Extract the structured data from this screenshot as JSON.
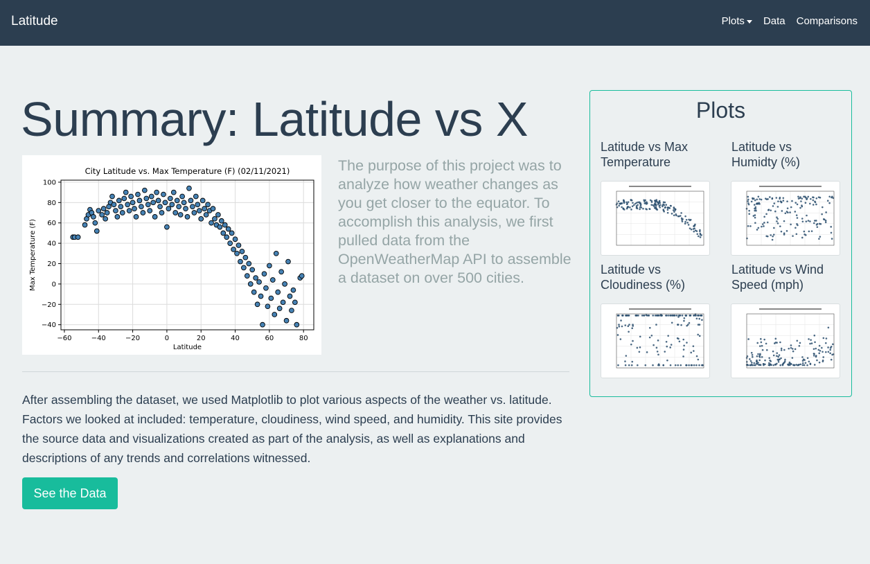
{
  "navbar": {
    "brand": "Latitude",
    "links": {
      "plots": "Plots",
      "data": "Data",
      "comparisons": "Comparisons"
    }
  },
  "page": {
    "title": "Summary: Latitude vs X",
    "lead": "The purpose of this project was to analyze how weather changes as you get closer to the equator. To accomplish this analysis, we first pulled data from the OpenWeatherMap API to assemble a dataset on over 500 cities.",
    "body": "After assembling the dataset, we used Matplotlib to plot various aspects of the weather vs. latitude. Factors we looked at included: temperature, cloudiness, wind speed, and humidity. This site provides the source data and visualizations created as part of the analysis, as well as explanations and descriptions of any trends and correlations witnessed.",
    "button": "See the Data"
  },
  "panel": {
    "title": "Plots",
    "thumbs": [
      {
        "label": "Latitude vs Max Temperature"
      },
      {
        "label": "Latitude vs Humidty (%)"
      },
      {
        "label": "Latitude vs Cloudiness (%)"
      },
      {
        "label": "Latitude vs Wind Speed (mph)"
      }
    ]
  },
  "colors": {
    "navbar": "#2c3e50",
    "accent": "#18bc9c",
    "background": "#ecf0f1",
    "muted": "#95a5a6",
    "marker": "#4682b4"
  },
  "chart_data": {
    "type": "scatter",
    "title": "City Latitude vs. Max Temperature (F) (02/11/2021)",
    "xlabel": "Latitude",
    "ylabel": "Max Temperature (F)",
    "xlim": [
      -62,
      86
    ],
    "ylim": [
      -45,
      102
    ],
    "xticks": [
      -60,
      -40,
      -20,
      0,
      20,
      40,
      60,
      80
    ],
    "yticks": [
      100,
      80,
      60,
      40,
      20,
      0,
      -20,
      -40
    ],
    "grid": true,
    "points": [
      [
        -55,
        46
      ],
      [
        -54,
        46
      ],
      [
        -52,
        46
      ],
      [
        -48,
        58
      ],
      [
        -47,
        64
      ],
      [
        -46,
        68
      ],
      [
        -45,
        73
      ],
      [
        -44,
        70
      ],
      [
        -43,
        66
      ],
      [
        -42,
        60
      ],
      [
        -41,
        52
      ],
      [
        -40,
        72
      ],
      [
        -38,
        68
      ],
      [
        -37,
        74
      ],
      [
        -36,
        64
      ],
      [
        -35,
        70
      ],
      [
        -34,
        76
      ],
      [
        -33,
        80
      ],
      [
        -32,
        86
      ],
      [
        -31,
        78
      ],
      [
        -30,
        72
      ],
      [
        -29,
        66
      ],
      [
        -28,
        82
      ],
      [
        -27,
        76
      ],
      [
        -26,
        70
      ],
      [
        -25,
        84
      ],
      [
        -24,
        90
      ],
      [
        -23,
        78
      ],
      [
        -22,
        72
      ],
      [
        -21,
        86
      ],
      [
        -20,
        80
      ],
      [
        -19,
        74
      ],
      [
        -18,
        66
      ],
      [
        -17,
        88
      ],
      [
        -16,
        82
      ],
      [
        -15,
        76
      ],
      [
        -14,
        70
      ],
      [
        -13,
        92
      ],
      [
        -12,
        84
      ],
      [
        -11,
        78
      ],
      [
        -10,
        72
      ],
      [
        -9,
        86
      ],
      [
        -8,
        80
      ],
      [
        -7,
        66
      ],
      [
        -6,
        90
      ],
      [
        -5,
        82
      ],
      [
        -4,
        76
      ],
      [
        -3,
        70
      ],
      [
        -2,
        88
      ],
      [
        -1,
        80
      ],
      [
        0,
        56
      ],
      [
        1,
        74
      ],
      [
        2,
        84
      ],
      [
        3,
        78
      ],
      [
        4,
        90
      ],
      [
        5,
        70
      ],
      [
        6,
        82
      ],
      [
        7,
        76
      ],
      [
        8,
        68
      ],
      [
        9,
        86
      ],
      [
        10,
        80
      ],
      [
        11,
        74
      ],
      [
        12,
        66
      ],
      [
        13,
        94
      ],
      [
        14,
        82
      ],
      [
        15,
        76
      ],
      [
        16,
        70
      ],
      [
        17,
        86
      ],
      [
        18,
        78
      ],
      [
        19,
        72
      ],
      [
        20,
        64
      ],
      [
        21,
        82
      ],
      [
        22,
        74
      ],
      [
        23,
        68
      ],
      [
        24,
        78
      ],
      [
        25,
        72
      ],
      [
        26,
        60
      ],
      [
        27,
        74
      ],
      [
        28,
        64
      ],
      [
        29,
        58
      ],
      [
        30,
        68
      ],
      [
        31,
        56
      ],
      [
        32,
        62
      ],
      [
        33,
        50
      ],
      [
        34,
        58
      ],
      [
        35,
        46
      ],
      [
        36,
        54
      ],
      [
        37,
        40
      ],
      [
        38,
        50
      ],
      [
        39,
        34
      ],
      [
        40,
        44
      ],
      [
        41,
        30
      ],
      [
        42,
        38
      ],
      [
        43,
        22
      ],
      [
        44,
        32
      ],
      [
        45,
        16
      ],
      [
        46,
        26
      ],
      [
        47,
        8
      ],
      [
        48,
        20
      ],
      [
        49,
        0
      ],
      [
        50,
        14
      ],
      [
        51,
        -8
      ],
      [
        52,
        6
      ],
      [
        53,
        -20
      ],
      [
        54,
        2
      ],
      [
        55,
        -12
      ],
      [
        56,
        -40
      ],
      [
        57,
        10
      ],
      [
        58,
        -4
      ],
      [
        59,
        -22
      ],
      [
        60,
        18
      ],
      [
        61,
        -14
      ],
      [
        62,
        4
      ],
      [
        63,
        -30
      ],
      [
        64,
        30
      ],
      [
        65,
        -8
      ],
      [
        66,
        -24
      ],
      [
        67,
        12
      ],
      [
        68,
        -18
      ],
      [
        69,
        0
      ],
      [
        70,
        -36
      ],
      [
        71,
        22
      ],
      [
        72,
        -12
      ],
      [
        73,
        -26
      ],
      [
        74,
        -6
      ],
      [
        75,
        -18
      ],
      [
        76,
        -40
      ],
      [
        78,
        6
      ],
      [
        79,
        8
      ]
    ]
  }
}
